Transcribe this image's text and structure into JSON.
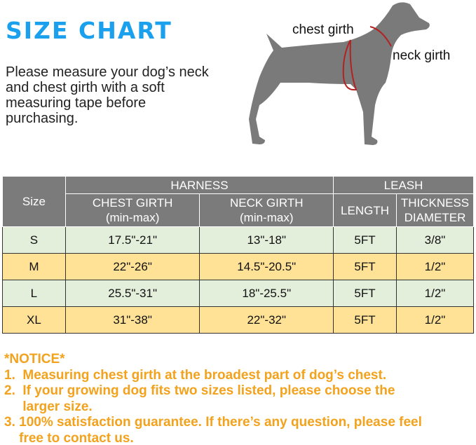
{
  "title": "SIZE CHART",
  "intro": "Please measure your dog’s neck and chest girth with a soft measuring tape before purchasing.",
  "diagram": {
    "chest_label": "chest girth",
    "neck_label": "neck girth"
  },
  "table": {
    "size_header": "Size",
    "harness_header": "HARNESS",
    "leash_header": "LEASH",
    "chest_header": "CHEST GIRTH",
    "chest_sub": "(min-max)",
    "neck_header": "NECK GIRTH",
    "neck_sub": "(min-max)",
    "length_header": "LENGTH",
    "thickness_header": "THICKNESS",
    "diameter_header": "DIAMETER",
    "rows": [
      {
        "size": "S",
        "chest": "17.5\"-21\"",
        "neck": "13\"-18\"",
        "length": "5FT",
        "thickness": "3/8\""
      },
      {
        "size": "M",
        "chest": "22\"-26\"",
        "neck": "14.5\"-20.5\"",
        "length": "5FT",
        "thickness": "1/2\""
      },
      {
        "size": "L",
        "chest": "25.5\"-31\"",
        "neck": "18\"-25.5\"",
        "length": "5FT",
        "thickness": "1/2\""
      },
      {
        "size": "XL",
        "chest": "31\"-38\"",
        "neck": "22\"-32\"",
        "length": "5FT",
        "thickness": "1/2\""
      }
    ]
  },
  "notice": {
    "heading": "*NOTICE*",
    "lines": [
      "1.  Measuring chest girth at the broadest part of dog’s chest.",
      "2.  If your growing dog fits two sizes listed, please choose the",
      "     larger size.",
      "3. 100% satisfaction guarantee. If there’s any question, please feel",
      "    free to contact us."
    ]
  },
  "colors": {
    "title": "#1aa0ec",
    "header": "#7b7b7b",
    "row_green": "#e3eedb",
    "row_yellow": "#ffe296",
    "notice": "#f2a21c",
    "measure_line": "#b22222"
  }
}
